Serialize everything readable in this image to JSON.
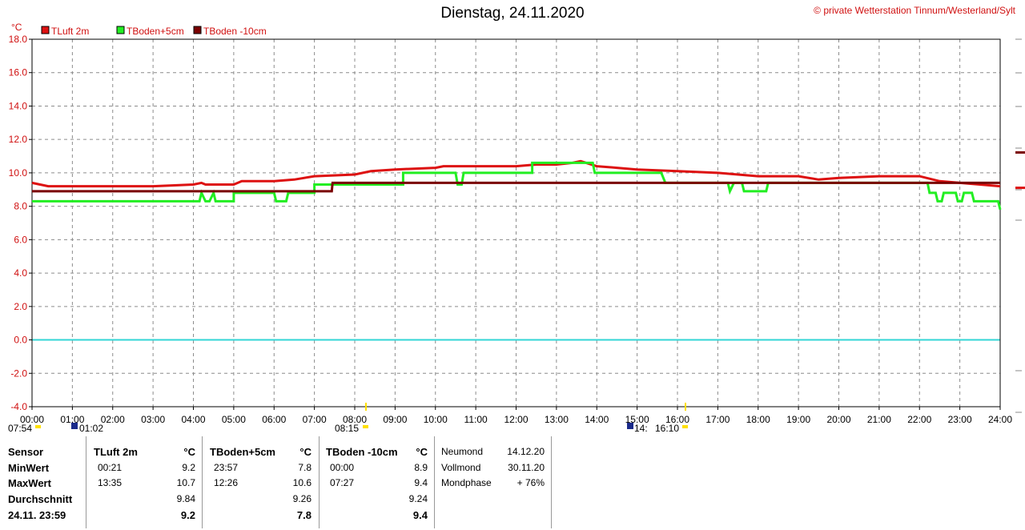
{
  "header": {
    "title": "Dienstag, 24.11.2020",
    "copyright": "© private Wetterstation Tinnum/Westerland/Sylt",
    "unit_label": "°C"
  },
  "chart_data": {
    "type": "line",
    "ylim": [
      -4,
      18
    ],
    "yticks": [
      "18.0",
      "16.0",
      "14.0",
      "12.0",
      "10.0",
      "8.0",
      "6.0",
      "4.0",
      "2.0",
      "0.0",
      "-2.0",
      "-4.0"
    ],
    "xticks": [
      "00:00",
      "01:00",
      "02:00",
      "03:00",
      "04:00",
      "05:00",
      "06:00",
      "07:00",
      "08:00",
      "09:00",
      "10:00",
      "11:00",
      "12:00",
      "13:00",
      "14:00",
      "15:00",
      "16:00",
      "17:00",
      "18:00",
      "19:00",
      "20:00",
      "21:00",
      "22:00",
      "23:00",
      "24:00"
    ],
    "grid": true,
    "legend_placement": "top-left",
    "zero_line_color": "#33d6d6",
    "series": [
      {
        "name": "TLuft 2m",
        "color": "#dd1111",
        "points": [
          [
            0,
            9.4
          ],
          [
            0.2,
            9.3
          ],
          [
            0.4,
            9.2
          ],
          [
            1,
            9.2
          ],
          [
            2,
            9.2
          ],
          [
            3,
            9.2
          ],
          [
            4,
            9.3
          ],
          [
            4.2,
            9.4
          ],
          [
            4.3,
            9.3
          ],
          [
            5,
            9.3
          ],
          [
            5.2,
            9.5
          ],
          [
            6,
            9.5
          ],
          [
            6.5,
            9.6
          ],
          [
            7,
            9.8
          ],
          [
            8,
            9.9
          ],
          [
            8.4,
            10.1
          ],
          [
            9,
            10.2
          ],
          [
            10,
            10.3
          ],
          [
            10.2,
            10.4
          ],
          [
            11,
            10.4
          ],
          [
            12,
            10.4
          ],
          [
            12.5,
            10.5
          ],
          [
            13,
            10.5
          ],
          [
            13.4,
            10.6
          ],
          [
            13.6,
            10.7
          ],
          [
            14,
            10.4
          ],
          [
            14.5,
            10.3
          ],
          [
            15,
            10.2
          ],
          [
            16,
            10.1
          ],
          [
            17,
            10.0
          ],
          [
            17.5,
            9.9
          ],
          [
            18,
            9.8
          ],
          [
            19,
            9.8
          ],
          [
            19.5,
            9.6
          ],
          [
            20,
            9.7
          ],
          [
            21,
            9.8
          ],
          [
            22,
            9.8
          ],
          [
            22.5,
            9.5
          ],
          [
            23,
            9.4
          ],
          [
            23.5,
            9.3
          ],
          [
            24,
            9.2
          ]
        ]
      },
      {
        "name": "TBoden+5cm",
        "color": "#22ee22",
        "points": [
          [
            0,
            8.3
          ],
          [
            4.15,
            8.3
          ],
          [
            4.2,
            8.8
          ],
          [
            4.3,
            8.3
          ],
          [
            4.4,
            8.3
          ],
          [
            4.5,
            8.8
          ],
          [
            4.55,
            8.3
          ],
          [
            5,
            8.3
          ],
          [
            5.0,
            8.8
          ],
          [
            6,
            8.8
          ],
          [
            6.05,
            8.3
          ],
          [
            6.3,
            8.3
          ],
          [
            6.35,
            8.8
          ],
          [
            7,
            8.8
          ],
          [
            7,
            9.3
          ],
          [
            7.5,
            9.3
          ],
          [
            9.2,
            9.3
          ],
          [
            9.2,
            10.0
          ],
          [
            10.5,
            10.0
          ],
          [
            10.55,
            9.3
          ],
          [
            10.65,
            9.3
          ],
          [
            10.7,
            10.0
          ],
          [
            12.4,
            10.0
          ],
          [
            12.4,
            10.6
          ],
          [
            13.9,
            10.6
          ],
          [
            13.95,
            10.0
          ],
          [
            15.6,
            10.0
          ],
          [
            15.7,
            9.4
          ],
          [
            17.25,
            9.4
          ],
          [
            17.3,
            8.9
          ],
          [
            17.4,
            9.4
          ],
          [
            17.6,
            9.4
          ],
          [
            17.65,
            8.9
          ],
          [
            18.2,
            8.9
          ],
          [
            18.25,
            9.4
          ],
          [
            22.2,
            9.4
          ],
          [
            22.25,
            8.8
          ],
          [
            22.4,
            8.8
          ],
          [
            22.45,
            8.3
          ],
          [
            22.55,
            8.3
          ],
          [
            22.6,
            8.8
          ],
          [
            22.9,
            8.8
          ],
          [
            22.95,
            8.3
          ],
          [
            23.05,
            8.3
          ],
          [
            23.1,
            8.8
          ],
          [
            23.3,
            8.8
          ],
          [
            23.35,
            8.3
          ],
          [
            23.95,
            8.3
          ],
          [
            24,
            7.8
          ]
        ]
      },
      {
        "name": "TBoden -10cm",
        "color": "#7a0000",
        "points": [
          [
            0,
            8.9
          ],
          [
            7.43,
            8.9
          ],
          [
            7.45,
            9.4
          ],
          [
            24,
            9.4
          ]
        ]
      }
    ],
    "sun": {
      "rise_label": "07:54",
      "set_label": "16:10"
    },
    "moon": {
      "set_label": "01:02",
      "rise_label": "14:"
    },
    "daylight_label": "08:15"
  },
  "table": {
    "row_labels": [
      "Sensor",
      "MinWert",
      "MaxWert",
      "Durchschnitt",
      "24.11. 23:59"
    ],
    "groups": [
      {
        "name": "TLuft 2m",
        "unit": "°C",
        "min_time": "00:21",
        "min": "9.2",
        "max_time": "13:35",
        "max": "10.7",
        "avg": "9.84",
        "current": "9.2"
      },
      {
        "name": "TBoden+5cm",
        "unit": "°C",
        "min_time": "23:57",
        "min": "7.8",
        "max_time": "12:26",
        "max": "10.6",
        "avg": "9.26",
        "current": "7.8"
      },
      {
        "name": "TBoden -10cm",
        "unit": "°C",
        "min_time": "00:00",
        "min": "8.9",
        "max_time": "07:27",
        "max": "9.4",
        "avg": "9.24",
        "current": "9.4"
      }
    ],
    "moon_info": [
      {
        "label": "Neumond",
        "value": "14.12.20"
      },
      {
        "label": "Vollmond",
        "value": "30.11.20"
      },
      {
        "label": "Mondphase",
        "value": "+ 76%"
      }
    ]
  }
}
